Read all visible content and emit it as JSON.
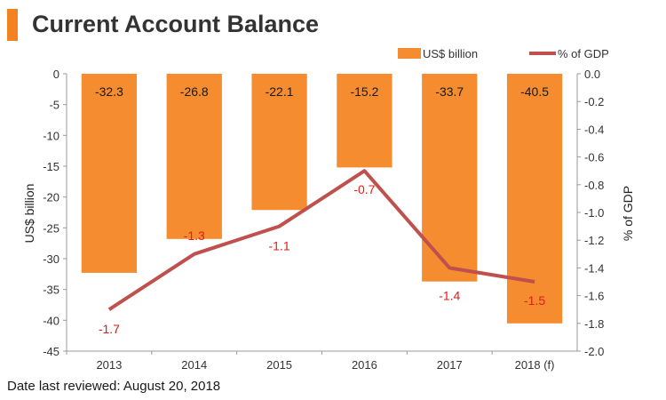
{
  "header": {
    "title": "Current Account Balance"
  },
  "footer": {
    "note": "Date last reviewed: August 20, 2018"
  },
  "colors": {
    "accent": "#f58220",
    "bar": "#f58c2f",
    "line": "#c0504d",
    "pct_label": "#e21b1b"
  },
  "chart_data": {
    "type": "bar",
    "title": "Current Account Balance",
    "categories": [
      "2013",
      "2014",
      "2015",
      "2016",
      "2017",
      "2018 (f)"
    ],
    "series": [
      {
        "name": "US$ billion",
        "type": "bar",
        "axis": "left",
        "values": [
          -32.3,
          -26.8,
          -22.1,
          -15.2,
          -33.7,
          -40.5
        ],
        "labels": [
          "-32.3",
          "-26.8",
          "-22.1",
          "-15.2",
          "-33.7",
          "-40.5"
        ]
      },
      {
        "name": "% of GDP",
        "type": "line",
        "axis": "right",
        "values": [
          -1.7,
          -1.3,
          -1.1,
          -0.7,
          -1.4,
          -1.5
        ],
        "labels": [
          "-1.7",
          "-1.3",
          "-1.1",
          "-0.7",
          "-1.4",
          "-1.5"
        ]
      }
    ],
    "ylabel": "US$ billion",
    "y2label": "% of GDP",
    "ylim": [
      -45,
      0
    ],
    "y2lim": [
      -2.0,
      0.0
    ],
    "yticks": [
      "0",
      "-5",
      "-10",
      "-15",
      "-20",
      "-25",
      "-30",
      "-35",
      "-40",
      "-45"
    ],
    "y2ticks": [
      "0.0",
      "-0.2",
      "-0.4",
      "-0.6",
      "-0.8",
      "-1.0",
      "-1.2",
      "-1.4",
      "-1.6",
      "-1.8",
      "-2.0"
    ],
    "grid": false,
    "legend_position": "top-right"
  }
}
